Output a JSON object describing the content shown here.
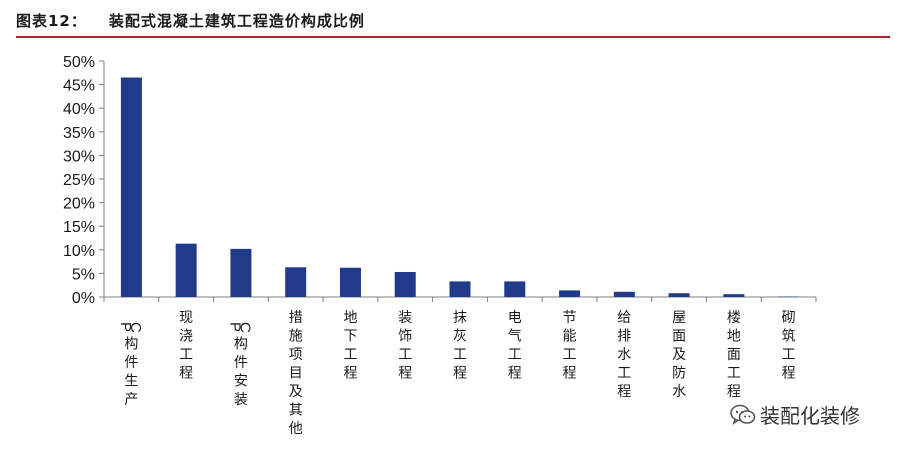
{
  "header": {
    "figure_label": "图表12：",
    "figure_title": "装配式混凝土建筑工程造价构成比例"
  },
  "watermark": {
    "text": "装配化装修",
    "icon": "wechat-icon"
  },
  "colors": {
    "bar": "#1f3b8a",
    "axis": "#808080",
    "header_rule": "#b22222"
  },
  "chart_data": {
    "type": "bar",
    "title": "",
    "xlabel": "",
    "ylabel": "",
    "ylim": [
      0,
      50
    ],
    "y_unit": "%",
    "yticks": [
      0,
      5,
      10,
      15,
      20,
      25,
      30,
      35,
      40,
      45,
      50
    ],
    "ytick_labels": [
      "0%",
      "5%",
      "10%",
      "15%",
      "20%",
      "25%",
      "30%",
      "35%",
      "40%",
      "45%",
      "50%"
    ],
    "grid": false,
    "legend": "none",
    "categories": [
      "PC构件生产",
      "现浇工程",
      "PC构件安装",
      "措施项目及其他",
      "地下工程",
      "装饰工程",
      "抹灰工程",
      "电气工程",
      "节能工程",
      "给排水工程",
      "屋面及防水",
      "楼地面工程",
      "砌筑工程"
    ],
    "values": [
      46.5,
      11.3,
      10.2,
      6.3,
      6.2,
      5.3,
      3.3,
      3.3,
      1.4,
      1.1,
      0.8,
      0.6,
      0.1
    ]
  }
}
